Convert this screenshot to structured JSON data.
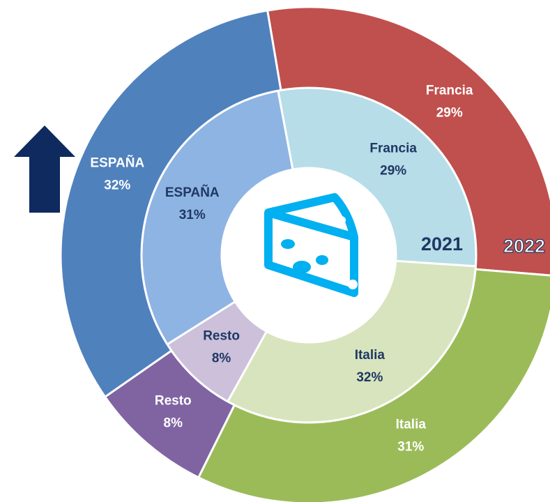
{
  "chart_data": {
    "type": "donut",
    "categories": [
      "Francia",
      "Italia",
      "Resto",
      "ESPAÑA"
    ],
    "series": [
      {
        "name": "2021",
        "values": [
          29,
          32,
          8,
          31
        ],
        "value_labels": [
          "29%",
          "32%",
          "8%",
          "31%"
        ],
        "colors": [
          "#b7dde8",
          "#d7e4bd",
          "#ccc0da",
          "#8eb4e3"
        ]
      },
      {
        "name": "2022",
        "values": [
          29,
          31,
          8,
          32
        ],
        "value_labels": [
          "29%",
          "31%",
          "8%",
          "32%"
        ],
        "colors": [
          "#c0504d",
          "#9bbb59",
          "#8064a2",
          "#4f81bd"
        ]
      }
    ]
  }
}
